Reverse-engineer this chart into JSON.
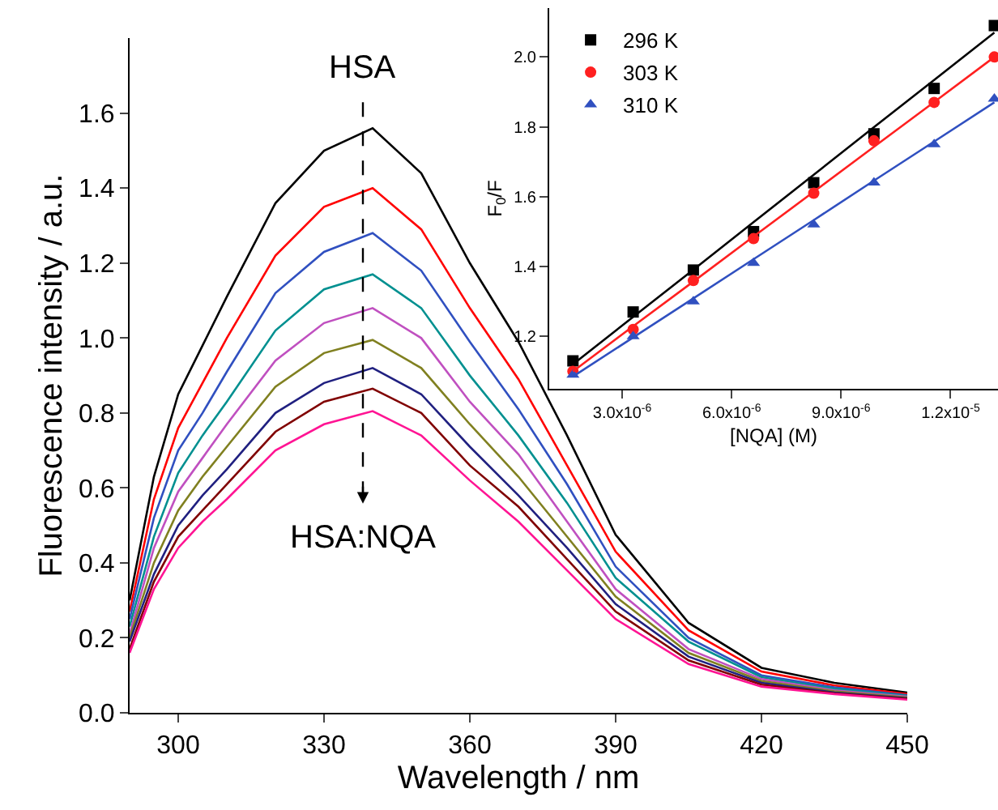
{
  "chart_data": [
    {
      "type": "line",
      "xlabel": "Wavelength / nm",
      "ylabel": "Fluorescence intensity / a.u.",
      "x": [
        290,
        295,
        300,
        305,
        310,
        320,
        330,
        340,
        350,
        360,
        370,
        380,
        390,
        405,
        420,
        435,
        450
      ],
      "xlim": [
        290,
        450
      ],
      "xticks": [
        300,
        330,
        360,
        390,
        420,
        450
      ],
      "ylim": [
        0,
        1.8
      ],
      "yticks": [
        {
          "value": 0,
          "label": "0.0"
        },
        0.2,
        0.4,
        0.6,
        0.8,
        {
          "value": 1,
          "label": "1.0"
        },
        1.2,
        1.4,
        1.6
      ],
      "marker": "none",
      "line_style": "solid",
      "series": [
        {
          "color": "#000000",
          "values": [
            0.3,
            0.63,
            0.85,
            0.98,
            1.11,
            1.36,
            1.5,
            1.56,
            1.44,
            1.2,
            0.99,
            0.74,
            0.475,
            0.24,
            0.12,
            0.08,
            0.054
          ]
        },
        {
          "color": "#ff0000",
          "values": [
            0.27,
            0.57,
            0.76,
            0.88,
            1.0,
            1.22,
            1.35,
            1.4,
            1.29,
            1.08,
            0.89,
            0.66,
            0.43,
            0.22,
            0.11,
            0.073,
            0.05
          ]
        },
        {
          "color": "#3050c0",
          "values": [
            0.25,
            0.52,
            0.7,
            0.8,
            0.91,
            1.12,
            1.23,
            1.28,
            1.18,
            0.99,
            0.81,
            0.61,
            0.39,
            0.2,
            0.1,
            0.068,
            0.047
          ]
        },
        {
          "color": "#009090",
          "values": [
            0.23,
            0.47,
            0.64,
            0.74,
            0.83,
            1.02,
            1.13,
            1.17,
            1.08,
            0.9,
            0.74,
            0.56,
            0.36,
            0.19,
            0.095,
            0.064,
            0.045
          ]
        },
        {
          "color": "#c050c0",
          "values": [
            0.21,
            0.44,
            0.59,
            0.68,
            0.77,
            0.94,
            1.04,
            1.08,
            1.0,
            0.83,
            0.69,
            0.51,
            0.33,
            0.17,
            0.09,
            0.06,
            0.043
          ]
        },
        {
          "color": "#808020",
          "values": [
            0.2,
            0.4,
            0.54,
            0.63,
            0.71,
            0.87,
            0.96,
            0.995,
            0.92,
            0.77,
            0.63,
            0.47,
            0.31,
            0.16,
            0.085,
            0.057,
            0.041
          ]
        },
        {
          "color": "#202080",
          "values": [
            0.19,
            0.37,
            0.5,
            0.58,
            0.65,
            0.8,
            0.88,
            0.92,
            0.85,
            0.71,
            0.58,
            0.44,
            0.29,
            0.15,
            0.08,
            0.054,
            0.039
          ]
        },
        {
          "color": "#800000",
          "values": [
            0.17,
            0.35,
            0.47,
            0.54,
            0.61,
            0.75,
            0.83,
            0.865,
            0.8,
            0.66,
            0.55,
            0.41,
            0.27,
            0.14,
            0.075,
            0.052,
            0.037
          ]
        },
        {
          "color": "#ff1493",
          "values": [
            0.16,
            0.33,
            0.44,
            0.51,
            0.57,
            0.7,
            0.77,
            0.805,
            0.74,
            0.62,
            0.51,
            0.38,
            0.25,
            0.13,
            0.07,
            0.05,
            0.035
          ]
        }
      ],
      "annotations": [
        "HSA",
        "HSA:NQA"
      ]
    },
    {
      "type": "scatter",
      "xlabel": "[NQA] (M)",
      "ylabel": "F$_{0}$/F",
      "xlim": [
        1e-06,
        1.33e-05
      ],
      "xticks": [
        {
          "value": 3e-06,
          "label": "3.0x10$^{-6}$"
        },
        {
          "value": 6e-06,
          "label": "6.0x10$^{-6}$"
        },
        {
          "value": 9e-06,
          "label": "9.0x10$^{-6}$"
        },
        {
          "value": 1.2e-05,
          "label": "1.2x10$^{-5}$"
        }
      ],
      "ylim": [
        1.05,
        2.14
      ],
      "yticks": [
        1.2,
        1.4,
        1.6,
        1.8,
        {
          "value": 2,
          "label": "2.0"
        }
      ],
      "legend": "top left",
      "x": [
        1.65e-06,
        3.3e-06,
        4.95e-06,
        6.6e-06,
        8.25e-06,
        9.9e-06,
        1.155e-05,
        1.32e-05
      ],
      "series": [
        {
          "name": "296 K",
          "color": "#000000",
          "marker": "square",
          "values": [
            1.13,
            1.27,
            1.39,
            1.5,
            1.64,
            1.78,
            1.91,
            2.09
          ]
        },
        {
          "name": "303 K",
          "color": "#ff2020",
          "marker": "circle",
          "values": [
            1.1,
            1.22,
            1.36,
            1.48,
            1.61,
            1.76,
            1.87,
            2.0
          ]
        },
        {
          "name": "310 K",
          "color": "#3050c0",
          "marker": "triangle",
          "values": [
            1.09,
            1.2,
            1.3,
            1.41,
            1.52,
            1.64,
            1.75,
            1.88
          ]
        },
        {
          "type": "line",
          "color": "#000000",
          "values": [
            1.12,
            1.256,
            1.391,
            1.527,
            1.663,
            1.799,
            1.934,
            2.07
          ]
        },
        {
          "type": "line",
          "color": "#ff2020",
          "values": [
            1.1,
            1.229,
            1.357,
            1.486,
            1.614,
            1.743,
            1.871,
            2.0
          ]
        },
        {
          "type": "line",
          "color": "#3050c0",
          "values": [
            1.085,
            1.197,
            1.309,
            1.421,
            1.533,
            1.646,
            1.758,
            1.87
          ]
        }
      ]
    }
  ]
}
